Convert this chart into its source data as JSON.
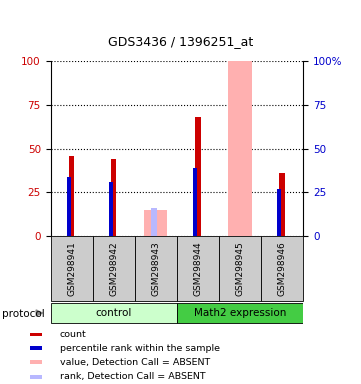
{
  "title": "GDS3436 / 1396251_at",
  "samples": [
    "GSM298941",
    "GSM298942",
    "GSM298943",
    "GSM298944",
    "GSM298945",
    "GSM298946"
  ],
  "groups": [
    "control",
    "control",
    "control",
    "Math2 expression",
    "Math2 expression",
    "Math2 expression"
  ],
  "count_values": [
    46,
    44,
    0,
    68,
    0,
    36
  ],
  "rank_values": [
    34,
    31,
    0,
    39,
    0,
    27
  ],
  "absent_value_bars": [
    0,
    0,
    15,
    0,
    100,
    0
  ],
  "absent_rank_bars": [
    0,
    0,
    16,
    0,
    0,
    0
  ],
  "count_color": "#cc0000",
  "rank_color": "#0000cc",
  "absent_value_color": "#ffb0b0",
  "absent_rank_color": "#b8b8ff",
  "control_bg": "#ccffcc",
  "math2_bg": "#44cc44",
  "sample_box_bg": "#cccccc",
  "ylim": [
    0,
    100
  ],
  "yticks": [
    0,
    25,
    50,
    75,
    100
  ],
  "legend_items": [
    {
      "label": "count",
      "color": "#cc0000"
    },
    {
      "label": "percentile rank within the sample",
      "color": "#0000cc"
    },
    {
      "label": "value, Detection Call = ABSENT",
      "color": "#ffb0b0"
    },
    {
      "label": "rank, Detection Call = ABSENT",
      "color": "#b8b8ff"
    }
  ]
}
